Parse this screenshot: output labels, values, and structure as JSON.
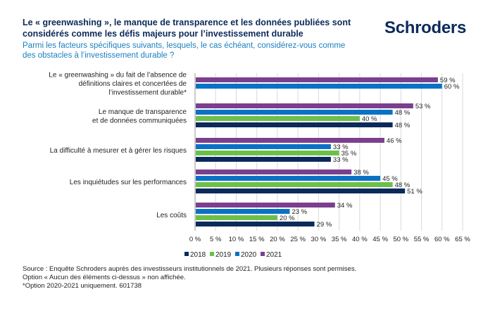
{
  "header": {
    "title": "Le « greenwashing », le manque de transparence et les données publiées sont considérés comme les défis majeurs pour l’investissement durable",
    "subtitle": "Parmi les facteurs spécifiques suivants, lesquels, le cas échéant, considérez-vous comme des obstacles à l’investissement durable ?",
    "logo": "Schroders"
  },
  "chart_data": {
    "type": "bar",
    "orientation": "horizontal",
    "categories": [
      [
        "Le « greenwashing » du fait de l’absence de",
        "définitions claires et concertées de",
        "l’investissement durable*"
      ],
      [
        "Le manque de transparence",
        "et de données communiquées"
      ],
      [
        "La difficulté à mesurer et à gérer les risques"
      ],
      [
        "Les inquiétudes sur les performances"
      ],
      [
        "Les coûts"
      ]
    ],
    "series": [
      {
        "name": "2021",
        "color": "#7b3f8e",
        "values": [
          59,
          53,
          46,
          38,
          34
        ]
      },
      {
        "name": "2020",
        "color": "#0a72c4",
        "values": [
          60,
          48,
          33,
          45,
          23
        ]
      },
      {
        "name": "2019",
        "color": "#6cc04a",
        "values": [
          null,
          40,
          35,
          48,
          20
        ]
      },
      {
        "name": "2018",
        "color": "#0b2a5b",
        "values": [
          null,
          48,
          33,
          51,
          29
        ]
      }
    ],
    "legend_order": [
      "2018",
      "2019",
      "2020",
      "2021"
    ],
    "legend_position": "bottom",
    "xlim": [
      0,
      65
    ],
    "xticks": [
      "0 %",
      "5 %",
      "10 %",
      "15 %",
      "20 %",
      "25 %",
      "30 %",
      "35 %",
      "40 %",
      "45 %",
      "50 %",
      "55 %",
      "60 %",
      "65 %"
    ],
    "value_suffix": " %",
    "grid": true
  },
  "footer": {
    "lines": [
      "Source : Enquête Schroders auprès des investisseurs institutionnels de 2021. Plusieurs réponses sont permises.",
      "Option « Aucun des éléments ci-dessus » non affichée.",
      "*Option 2020-2021 uniquement. 601738"
    ]
  }
}
